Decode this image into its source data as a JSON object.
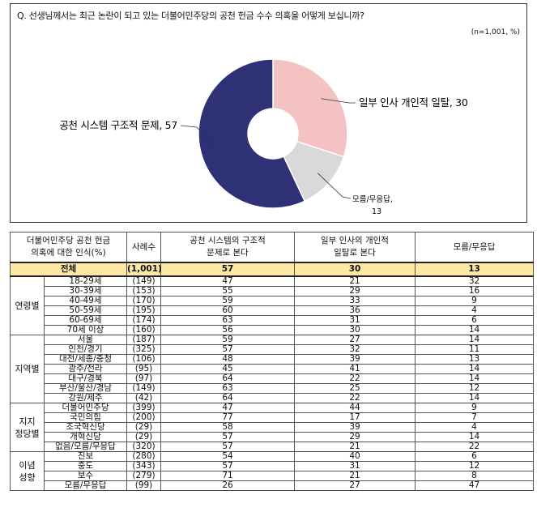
{
  "question": "Q. 선생님께서는 최근 논란이 되고 있는 더불어민주당의 공천 헌금 수수 의혹을 어떻게 보십니까?",
  "sample_note": "(n=1,001, %)",
  "chart_data": {
    "type": "pie",
    "donut": true,
    "slices": [
      {
        "label": "일부 인사 개인적 일탈",
        "value": 30,
        "text": "일부 인사 개인적 일탈, 30",
        "color": "#f5c2c4"
      },
      {
        "label": "모름/무응답",
        "value": 13,
        "text_line1": "모름/무응답,",
        "text_line2": "13",
        "color": "#d9d9d9"
      },
      {
        "label": "공천 시스템 구조적 문제",
        "value": 57,
        "text": "공천 시스템 구조적 문제, 57",
        "color": "#2e3175"
      }
    ]
  },
  "table": {
    "headers": {
      "group_line1": "더불어민주당 공천 헌금",
      "group_line2": "의혹에 대한 인식(%)",
      "n": "사례수",
      "col1_line1": "공천 시스템의 구조적",
      "col1_line2": "문제로 본다",
      "col2_line1": "일부 인사의 개인적",
      "col2_line2": "일탈로 본다",
      "col3": "모름/무응답"
    },
    "total": {
      "label": "전체",
      "n": "(1,001)",
      "v1": "57",
      "v2": "30",
      "v3": "13"
    },
    "groups": [
      {
        "name_line1": "연령별",
        "name_line2": "",
        "rows": [
          {
            "cat": "18-29세",
            "n": "(149)",
            "v1": "47",
            "v2": "21",
            "v3": "32"
          },
          {
            "cat": "30-39세",
            "n": "(153)",
            "v1": "55",
            "v2": "29",
            "v3": "16"
          },
          {
            "cat": "40-49세",
            "n": "(170)",
            "v1": "59",
            "v2": "33",
            "v3": "9"
          },
          {
            "cat": "50-59세",
            "n": "(195)",
            "v1": "60",
            "v2": "36",
            "v3": "4"
          },
          {
            "cat": "60-69세",
            "n": "(174)",
            "v1": "63",
            "v2": "31",
            "v3": "6"
          },
          {
            "cat": "70세 이상",
            "n": "(160)",
            "v1": "56",
            "v2": "30",
            "v3": "14"
          }
        ]
      },
      {
        "name_line1": "지역별",
        "name_line2": "",
        "rows": [
          {
            "cat": "서울",
            "n": "(187)",
            "v1": "59",
            "v2": "27",
            "v3": "14"
          },
          {
            "cat": "인천/경기",
            "n": "(325)",
            "v1": "57",
            "v2": "32",
            "v3": "11"
          },
          {
            "cat": "대전/세종/충청",
            "n": "(106)",
            "v1": "48",
            "v2": "39",
            "v3": "13"
          },
          {
            "cat": "광주/전라",
            "n": "(95)",
            "v1": "45",
            "v2": "41",
            "v3": "14"
          },
          {
            "cat": "대구/경북",
            "n": "(97)",
            "v1": "64",
            "v2": "22",
            "v3": "14"
          },
          {
            "cat": "부산/울산/경남",
            "n": "(149)",
            "v1": "63",
            "v2": "25",
            "v3": "12"
          },
          {
            "cat": "강원/제주",
            "n": "(42)",
            "v1": "64",
            "v2": "22",
            "v3": "14"
          }
        ]
      },
      {
        "name_line1": "지지",
        "name_line2": "정당별",
        "rows": [
          {
            "cat": "더불어민주당",
            "n": "(399)",
            "v1": "47",
            "v2": "44",
            "v3": "9"
          },
          {
            "cat": "국민의힘",
            "n": "(200)",
            "v1": "77",
            "v2": "17",
            "v3": "7"
          },
          {
            "cat": "조국혁신당",
            "n": "(29)",
            "v1": "58",
            "v2": "39",
            "v3": "4"
          },
          {
            "cat": "개혁신당",
            "n": "(29)",
            "v1": "57",
            "v2": "29",
            "v3": "14"
          },
          {
            "cat": "없음/모름/무응답",
            "n": "(320)",
            "v1": "57",
            "v2": "21",
            "v3": "22"
          }
        ]
      },
      {
        "name_line1": "이념",
        "name_line2": "성향",
        "rows": [
          {
            "cat": "진보",
            "n": "(280)",
            "v1": "54",
            "v2": "40",
            "v3": "6"
          },
          {
            "cat": "중도",
            "n": "(343)",
            "v1": "57",
            "v2": "31",
            "v3": "12"
          },
          {
            "cat": "보수",
            "n": "(279)",
            "v1": "71",
            "v2": "21",
            "v3": "8"
          },
          {
            "cat": "모름/무응답",
            "n": "(99)",
            "v1": "26",
            "v2": "27",
            "v3": "47"
          }
        ]
      }
    ]
  }
}
